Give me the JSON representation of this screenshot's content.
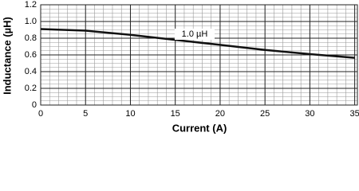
{
  "chart_data": {
    "type": "line",
    "x_label": "Current (A)",
    "y_label": "Inductance (µH)",
    "x": [
      0,
      5,
      10,
      15,
      20,
      25,
      30,
      35
    ],
    "series": [
      {
        "name": "1.0 µH",
        "color": "#111111",
        "values": [
          0.91,
          0.89,
          0.84,
          0.78,
          0.72,
          0.66,
          0.61,
          0.565
        ]
      }
    ],
    "xlim": [
      0,
      35.3
    ],
    "xticks": [
      0,
      5,
      10,
      15,
      20,
      25,
      30,
      35
    ],
    "ylim": [
      0,
      1.2
    ],
    "yticks": [
      0,
      0.2,
      0.4,
      0.6,
      0.8,
      {
        "value": 1,
        "label": "1.0"
      },
      1.2
    ],
    "grid": true,
    "minor_grid_step": {
      "x": 1,
      "y": 0.05
    }
  }
}
